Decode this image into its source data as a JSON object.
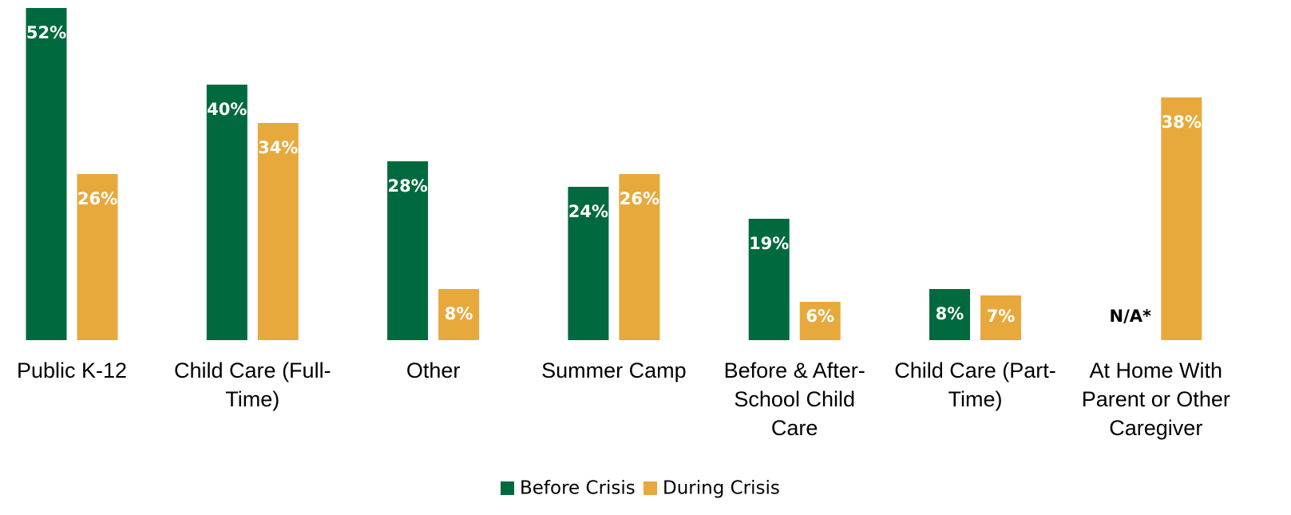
{
  "chart_data": {
    "type": "bar",
    "categories": [
      "Public K-12",
      "Child Care (Full-Time)",
      "Other",
      "Summer Camp",
      "Before & After-School Child Care",
      "Child Care (Part-Time)",
      "At Home With Parent or Other Caregiver"
    ],
    "series": [
      {
        "name": "Before Crisis",
        "color": "#006a3e",
        "values": [
          52,
          40,
          28,
          24,
          19,
          8,
          null
        ],
        "value_labels": [
          "52%",
          "40%",
          "28%",
          "24%",
          "19%",
          "8%",
          "N/A*"
        ]
      },
      {
        "name": "During Crisis",
        "color": "#e8a93c",
        "values": [
          26,
          34,
          8,
          26,
          6,
          7,
          38
        ],
        "value_labels": [
          "26%",
          "34%",
          "8%",
          "26%",
          "6%",
          "7%",
          "38%"
        ]
      }
    ],
    "legend": "bottom"
  }
}
